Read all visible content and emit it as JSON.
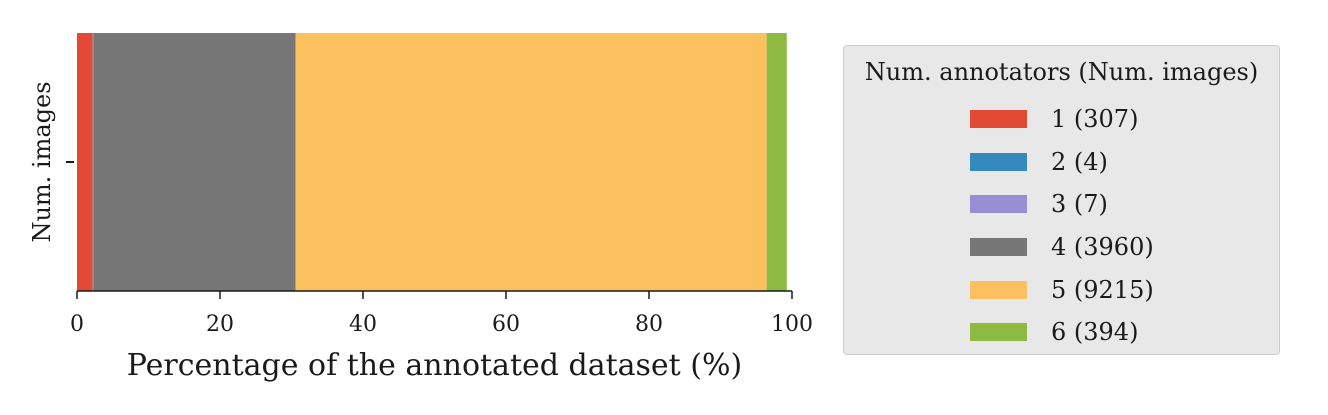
{
  "chart_data": {
    "type": "bar",
    "orientation": "horizontal",
    "stacked": true,
    "categories": [
      ""
    ],
    "ylabel": "Num. images",
    "xlabel": "Percentage of the annotated dataset (%)",
    "xlim": [
      0,
      100
    ],
    "xticks": [
      0,
      20,
      40,
      60,
      80,
      100
    ],
    "xtick_labels": [
      "0",
      "20",
      "40",
      "60",
      "80",
      "100"
    ],
    "grid": false,
    "legend_position": "right",
    "legend_title": "Num. annotators (Num. images)",
    "series": [
      {
        "name": "1 (307)",
        "count": 307,
        "value": 2.19,
        "color": "#E24A33"
      },
      {
        "name": "2 (4)",
        "count": 4,
        "value": 0.03,
        "color": "#348ABD"
      },
      {
        "name": "3 (7)",
        "count": 7,
        "value": 0.05,
        "color": "#988ED5"
      },
      {
        "name": "4 (3960)",
        "count": 3960,
        "value": 28.31,
        "color": "#777777"
      },
      {
        "name": "5 (9215)",
        "count": 9215,
        "value": 65.87,
        "color": "#FBC15E"
      },
      {
        "name": "6 (394)",
        "count": 394,
        "value": 2.82,
        "color": "#8EBA42"
      }
    ]
  }
}
